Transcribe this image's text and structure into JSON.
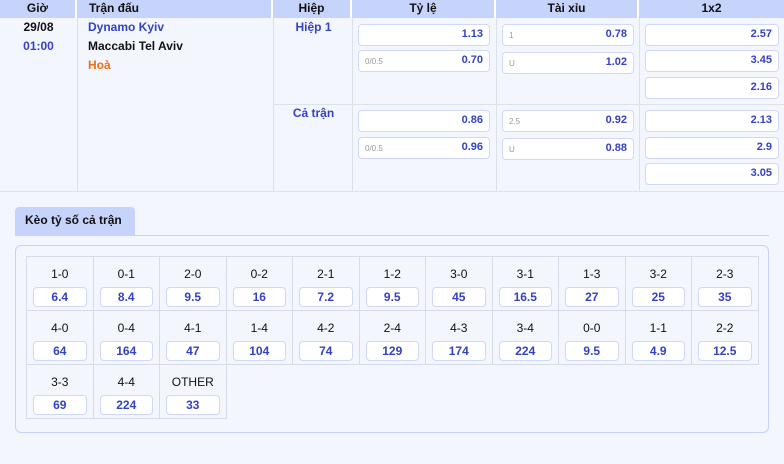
{
  "header": {
    "time": "Giờ",
    "match": "Trận đấu",
    "half": "Hiệp",
    "handicap": "Tỷ lệ",
    "overunder": "Tài xỉu",
    "x12": "1x2"
  },
  "match": {
    "date": "29/08",
    "time": "01:00",
    "home": "Dynamo Kyiv",
    "away": "Maccabi Tel Aviv",
    "draw": "Hoà"
  },
  "periods": [
    {
      "label": "Hiệp 1",
      "handicap": [
        {
          "line": "",
          "odds": "1.13"
        },
        {
          "line": "0/0.5",
          "odds": "0.70"
        }
      ],
      "overunder": [
        {
          "line": "1",
          "odds": "0.78"
        },
        {
          "line": "U",
          "odds": "1.02"
        }
      ],
      "x12": [
        "2.57",
        "3.45",
        "2.16"
      ]
    },
    {
      "label": "Cả trận",
      "handicap": [
        {
          "line": "",
          "odds": "0.86"
        },
        {
          "line": "0/0.5",
          "odds": "0.96"
        }
      ],
      "overunder": [
        {
          "line": "2.5",
          "odds": "0.92"
        },
        {
          "line": "U",
          "odds": "0.88"
        }
      ],
      "x12": [
        "2.13",
        "2.9",
        "3.05"
      ]
    }
  ],
  "scores_tab": "Kèo tỷ số cả trận",
  "scores": [
    {
      "s": "1-0",
      "o": "6.4"
    },
    {
      "s": "0-1",
      "o": "8.4"
    },
    {
      "s": "2-0",
      "o": "9.5"
    },
    {
      "s": "0-2",
      "o": "16"
    },
    {
      "s": "2-1",
      "o": "7.2"
    },
    {
      "s": "1-2",
      "o": "9.5"
    },
    {
      "s": "3-0",
      "o": "45"
    },
    {
      "s": "3-1",
      "o": "16.5"
    },
    {
      "s": "1-3",
      "o": "27"
    },
    {
      "s": "3-2",
      "o": "25"
    },
    {
      "s": "2-3",
      "o": "35"
    },
    {
      "s": "4-0",
      "o": "64"
    },
    {
      "s": "0-4",
      "o": "164"
    },
    {
      "s": "4-1",
      "o": "47"
    },
    {
      "s": "1-4",
      "o": "104"
    },
    {
      "s": "4-2",
      "o": "74"
    },
    {
      "s": "2-4",
      "o": "129"
    },
    {
      "s": "4-3",
      "o": "174"
    },
    {
      "s": "3-4",
      "o": "224"
    },
    {
      "s": "0-0",
      "o": "9.5"
    },
    {
      "s": "1-1",
      "o": "4.9"
    },
    {
      "s": "2-2",
      "o": "12.5"
    },
    {
      "s": "3-3",
      "o": "69"
    },
    {
      "s": "4-4",
      "o": "224"
    },
    {
      "s": "OTHER",
      "o": "33"
    }
  ]
}
